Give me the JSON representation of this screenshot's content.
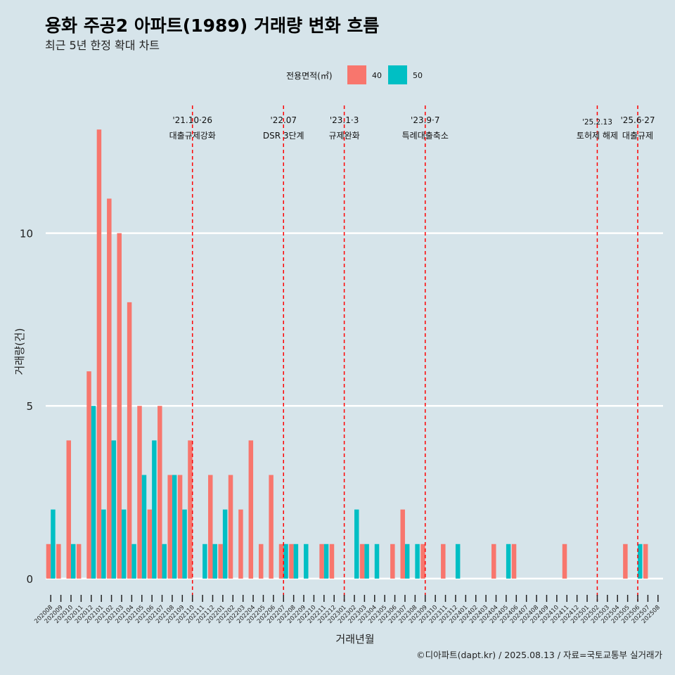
{
  "chart_data": {
    "type": "bar",
    "title": "용화 주공2 아파트(1989) 거래량 변화 흐름",
    "subtitle": "최근 5년 한정 확대 차트",
    "xlabel": "거래년월",
    "ylabel": "거래량(건)",
    "ylim": [
      -0.45,
      13.9
    ],
    "yticks": [
      0,
      5,
      10
    ],
    "grid": true,
    "legend": {
      "title": "전용면적(㎡)",
      "position": "top"
    },
    "caption": "©디아파트(dapt.kr) / 2025.08.13 / 자료=국토교통부 실거래가",
    "categories": [
      "202008",
      "202009",
      "202010",
      "202011",
      "202012",
      "202101",
      "202102",
      "202103",
      "202104",
      "202105",
      "202106",
      "202107",
      "202108",
      "202109",
      "202110",
      "202111",
      "202112",
      "202201",
      "202202",
      "202203",
      "202204",
      "202205",
      "202206",
      "202207",
      "202208",
      "202209",
      "202210",
      "202211",
      "202212",
      "202301",
      "202302",
      "202303",
      "202304",
      "202305",
      "202306",
      "202307",
      "202308",
      "202309",
      "202310",
      "202311",
      "202312",
      "202401",
      "202402",
      "202403",
      "202404",
      "202405",
      "202406",
      "202407",
      "202408",
      "202409",
      "202410",
      "202411",
      "202412",
      "202501",
      "202502",
      "202503",
      "202504",
      "202505",
      "202506",
      "202507",
      "202508"
    ],
    "series": [
      {
        "name": "40",
        "color": "#f8766d",
        "values": [
          1,
          1,
          4,
          1,
          6,
          13,
          11,
          10,
          8,
          5,
          2,
          5,
          3,
          3,
          4,
          0,
          3,
          1,
          3,
          2,
          4,
          1,
          3,
          1,
          1,
          0,
          0,
          1,
          1,
          0,
          0,
          1,
          0,
          0,
          1,
          2,
          0,
          1,
          0,
          1,
          0,
          0,
          0,
          0,
          1,
          0,
          1,
          0,
          0,
          0,
          0,
          1,
          0,
          0,
          0,
          0,
          0,
          1,
          0,
          1,
          0
        ]
      },
      {
        "name": "50",
        "color": "#00bfc4",
        "values": [
          2,
          0,
          1,
          0,
          5,
          2,
          4,
          2,
          1,
          3,
          4,
          1,
          3,
          2,
          0,
          1,
          1,
          2,
          0,
          0,
          0,
          0,
          0,
          1,
          1,
          1,
          0,
          1,
          0,
          0,
          2,
          1,
          1,
          0,
          0,
          1,
          1,
          0,
          0,
          0,
          1,
          0,
          0,
          0,
          0,
          1,
          0,
          0,
          0,
          0,
          0,
          0,
          0,
          0,
          0,
          0,
          0,
          0,
          1,
          0,
          0
        ]
      }
    ],
    "events": [
      {
        "x": "202110",
        "date": "'21.10·26",
        "label": "대출규제강화"
      },
      {
        "x": "202207",
        "date": "'22.07",
        "label": "DSR 3단계"
      },
      {
        "x": "202301",
        "date": "'23.1·3",
        "label": "규제완화"
      },
      {
        "x": "202309",
        "date": "'23.9·7",
        "label": "특례대출축소"
      },
      {
        "x": "202502",
        "date": "'25.2.13",
        "label": "토허제 해제"
      },
      {
        "x": "202506",
        "date": "'25.6·27",
        "label": "대출규제"
      }
    ]
  }
}
